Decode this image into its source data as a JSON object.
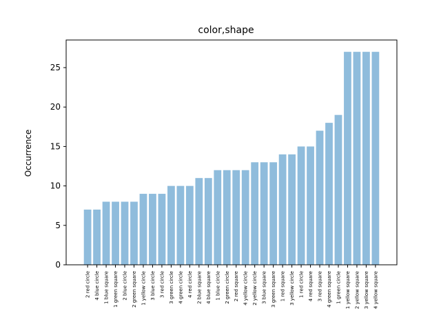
{
  "chart_data": {
    "type": "bar",
    "title": "color,shape",
    "xlabel": "",
    "ylabel": "Occurrence",
    "ylim": [
      0,
      28.5
    ],
    "yticks": [
      0,
      5,
      10,
      15,
      20,
      25
    ],
    "grid": false,
    "bar_color": "#8fbcdc",
    "categories": [
      "2 red circle",
      "4 blue circle",
      "1 blue square",
      "1 green square",
      "2 blue circle",
      "2 green square",
      "1 yellow circle",
      "3 blue circle",
      "3 red circle",
      "3 green circle",
      "4 green circle",
      "4 red circle",
      "2 blue square",
      "4 blue square",
      "1 blue circle",
      "2 green circle",
      "2 red square",
      "4 yellow circle",
      "2 yellow circle",
      "3 blue square",
      "3 green square",
      "1 red square",
      "3 yellow circle",
      "1 red circle",
      "4 red square",
      "3 red square",
      "4 green square",
      "1 green circle",
      "1 yellow square",
      "2 yellow square",
      "3 yellow square",
      "4 yellow square"
    ],
    "values": [
      7,
      7,
      8,
      8,
      8,
      8,
      9,
      9,
      9,
      10,
      10,
      10,
      11,
      11,
      12,
      12,
      12,
      12,
      13,
      13,
      13,
      14,
      14,
      15,
      15,
      17,
      18,
      19,
      27,
      27,
      27,
      27
    ]
  }
}
